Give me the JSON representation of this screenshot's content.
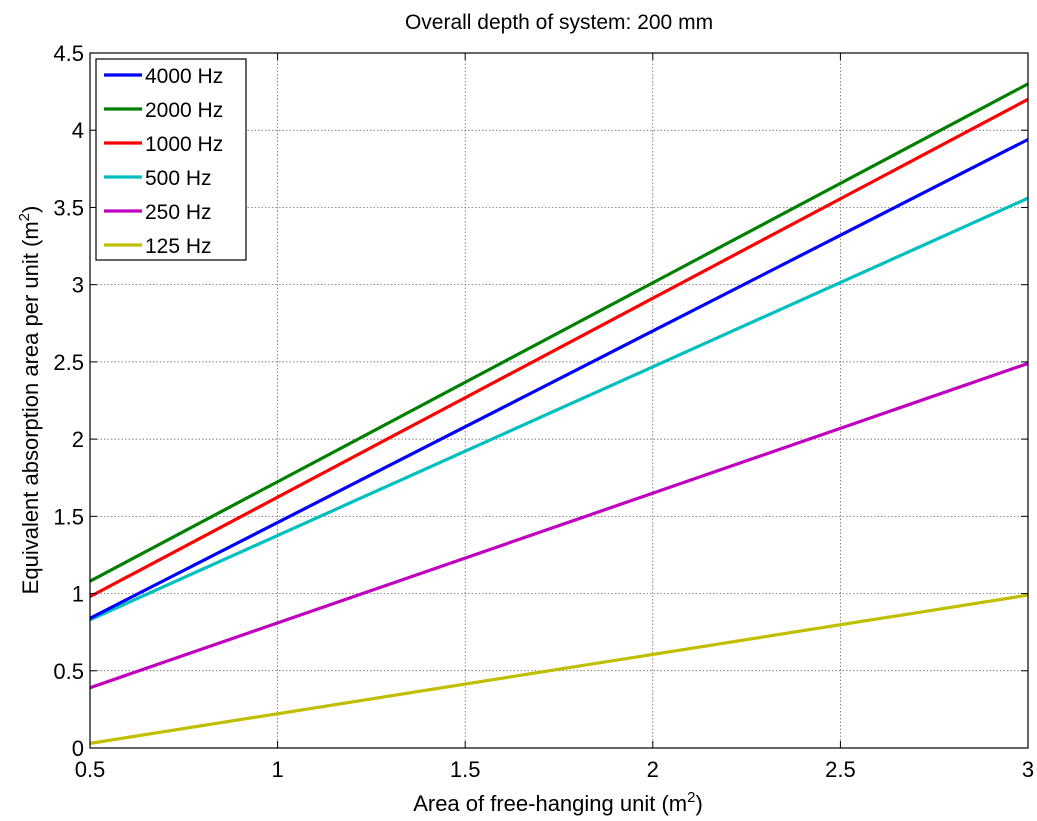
{
  "chart_data": {
    "type": "line",
    "title": "Overall depth of system: 200 mm",
    "xlabel": "Area of free-hanging unit (m",
    "xlabel_sup": "2",
    "xlabel_end": ")",
    "ylabel": "Equivalent absorption area per unit (m",
    "ylabel_sup": "2",
    "ylabel_end": ")",
    "xlim": [
      0.5,
      3
    ],
    "ylim": [
      0,
      4.5
    ],
    "xticks": [
      "0.5",
      "1",
      "1.5",
      "2",
      "2.5",
      "3"
    ],
    "yticks": [
      "0",
      "0.5",
      "1",
      "1.5",
      "2",
      "2.5",
      "3",
      "3.5",
      "4",
      "4.5"
    ],
    "grid": true,
    "legend_position": "top-left",
    "series": [
      {
        "name": "4000 Hz",
        "color": "#0000ff",
        "x": [
          0.5,
          3
        ],
        "y": [
          0.84,
          3.94
        ]
      },
      {
        "name": "2000 Hz",
        "color": "#008000",
        "x": [
          0.5,
          3
        ],
        "y": [
          1.08,
          4.3
        ]
      },
      {
        "name": "1000 Hz",
        "color": "#ff0000",
        "x": [
          0.5,
          3
        ],
        "y": [
          0.98,
          4.2
        ]
      },
      {
        "name": "500 Hz",
        "color": "#00bfbf",
        "x": [
          0.5,
          3
        ],
        "y": [
          0.83,
          3.56
        ]
      },
      {
        "name": "250 Hz",
        "color": "#bf00bf",
        "x": [
          0.5,
          3
        ],
        "y": [
          0.39,
          2.49
        ]
      },
      {
        "name": "125 Hz",
        "color": "#bfbf00",
        "x": [
          0.5,
          3
        ],
        "y": [
          0.03,
          0.99
        ]
      }
    ]
  }
}
